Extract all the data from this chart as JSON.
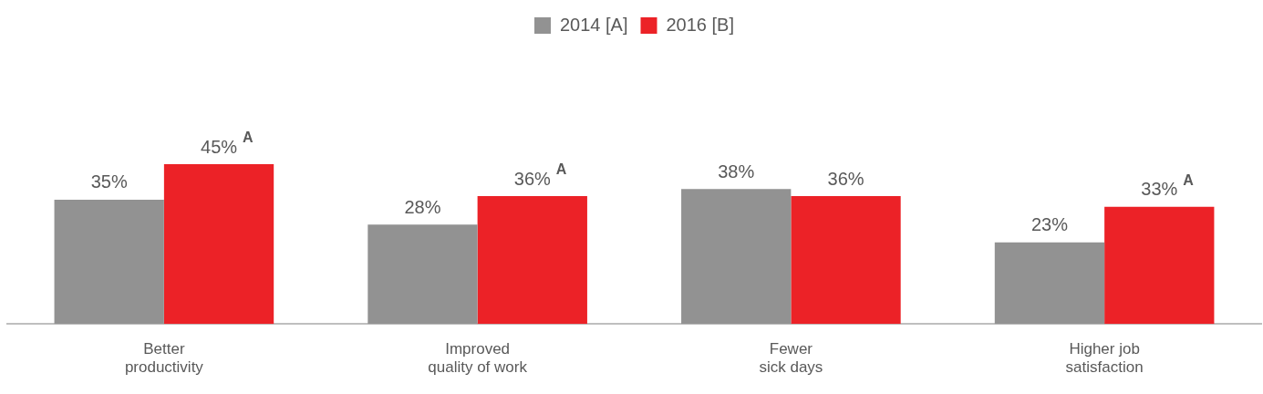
{
  "chart_data": {
    "type": "bar",
    "categories": [
      "Better\nproductivity",
      "Improved\nquality of work",
      "Fewer\nsick days",
      "Higher job\nsatisfaction"
    ],
    "series": [
      {
        "name": "2014 [A]",
        "color": "#929292",
        "values": [
          35,
          28,
          38,
          23
        ],
        "value_labels": [
          "35%",
          "28%",
          "38%",
          "23%"
        ]
      },
      {
        "name": "2016 [B]",
        "color": "#ec2227",
        "values": [
          45,
          36,
          36,
          33
        ],
        "value_labels": [
          "45%$^{A}$",
          "36%$^{A}$",
          "36%",
          "33%$^{A}$"
        ]
      }
    ],
    "tick_labels": "x",
    "grid": false,
    "legend": "top"
  }
}
